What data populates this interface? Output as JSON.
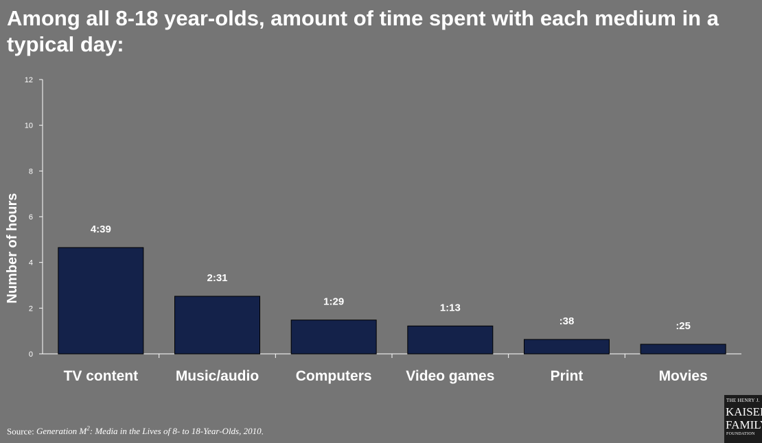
{
  "page": {
    "title": "Among all 8-18 year-olds, amount of time spent with each medium in a typical day:",
    "source_prefix": "Source: ",
    "source_pre": "Generation M",
    "source_sup": "2",
    "source_post": ": Media in the Lives of 8- to 18-Year-Olds, 2010",
    "source_end": "."
  },
  "logo": {
    "line1": "THE HENRY J.",
    "line2": "KAISER",
    "line3": "FAMILY",
    "line4": "FOUNDATION"
  },
  "colors": {
    "background": "#757575",
    "bar": "#14224a",
    "text": "#ffffff"
  },
  "chart_data": {
    "type": "bar",
    "title": "Among all 8-18 year-olds, amount of time spent with each medium in a typical day:",
    "xlabel": "",
    "ylabel": "Number of hours",
    "ylim": [
      0,
      12
    ],
    "yticks": [
      0,
      2,
      4,
      6,
      8,
      10,
      12
    ],
    "categories": [
      "TV content",
      "Music/audio",
      "Computers",
      "Video games",
      "Print",
      "Movies"
    ],
    "values": [
      4.65,
      2.52,
      1.48,
      1.22,
      0.63,
      0.42
    ],
    "data_labels": [
      "4:39",
      "2:31",
      "1:29",
      "1:13",
      ":38",
      ":25"
    ],
    "grid": false,
    "legend": "none"
  }
}
